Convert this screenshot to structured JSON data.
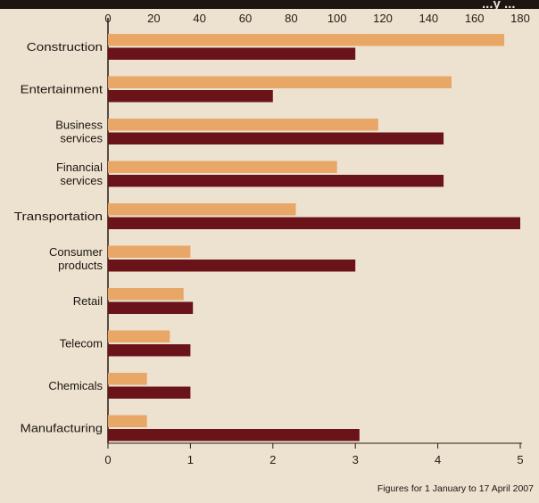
{
  "chart_data": {
    "type": "bar",
    "orientation": "horizontal",
    "title_partial": "...y ...",
    "categories": [
      [
        "Construction"
      ],
      [
        "Entertainment"
      ],
      [
        "Business",
        "services"
      ],
      [
        "Financial",
        "services"
      ],
      [
        "Transportation"
      ],
      [
        "Consumer",
        "products"
      ],
      [
        "Retail"
      ],
      [
        "Telecom"
      ],
      [
        "Chemicals"
      ],
      [
        "Manufacturing"
      ]
    ],
    "top_axis": {
      "ticks": [
        "0",
        "20",
        "40",
        "60",
        "80",
        "100",
        "120",
        "140",
        "160",
        "180"
      ],
      "range": [
        0,
        180
      ]
    },
    "bottom_axis": {
      "ticks": [
        "0",
        "1",
        "2",
        "3",
        "4",
        "5"
      ],
      "range": [
        0,
        5
      ]
    },
    "series": [
      {
        "axis": "top",
        "color": "#e8a766",
        "values": [
          173,
          150,
          118,
          100,
          82,
          36,
          33,
          27,
          17,
          17
        ]
      },
      {
        "axis": "bottom",
        "color": "#6a1419",
        "values": [
          3.0,
          2.0,
          4.07,
          4.07,
          5.0,
          3.0,
          1.03,
          1.0,
          1.0,
          3.05
        ]
      }
    ],
    "footnote": "Figures for 1 January to 17 April 2007",
    "grid": false,
    "legend": "none"
  }
}
